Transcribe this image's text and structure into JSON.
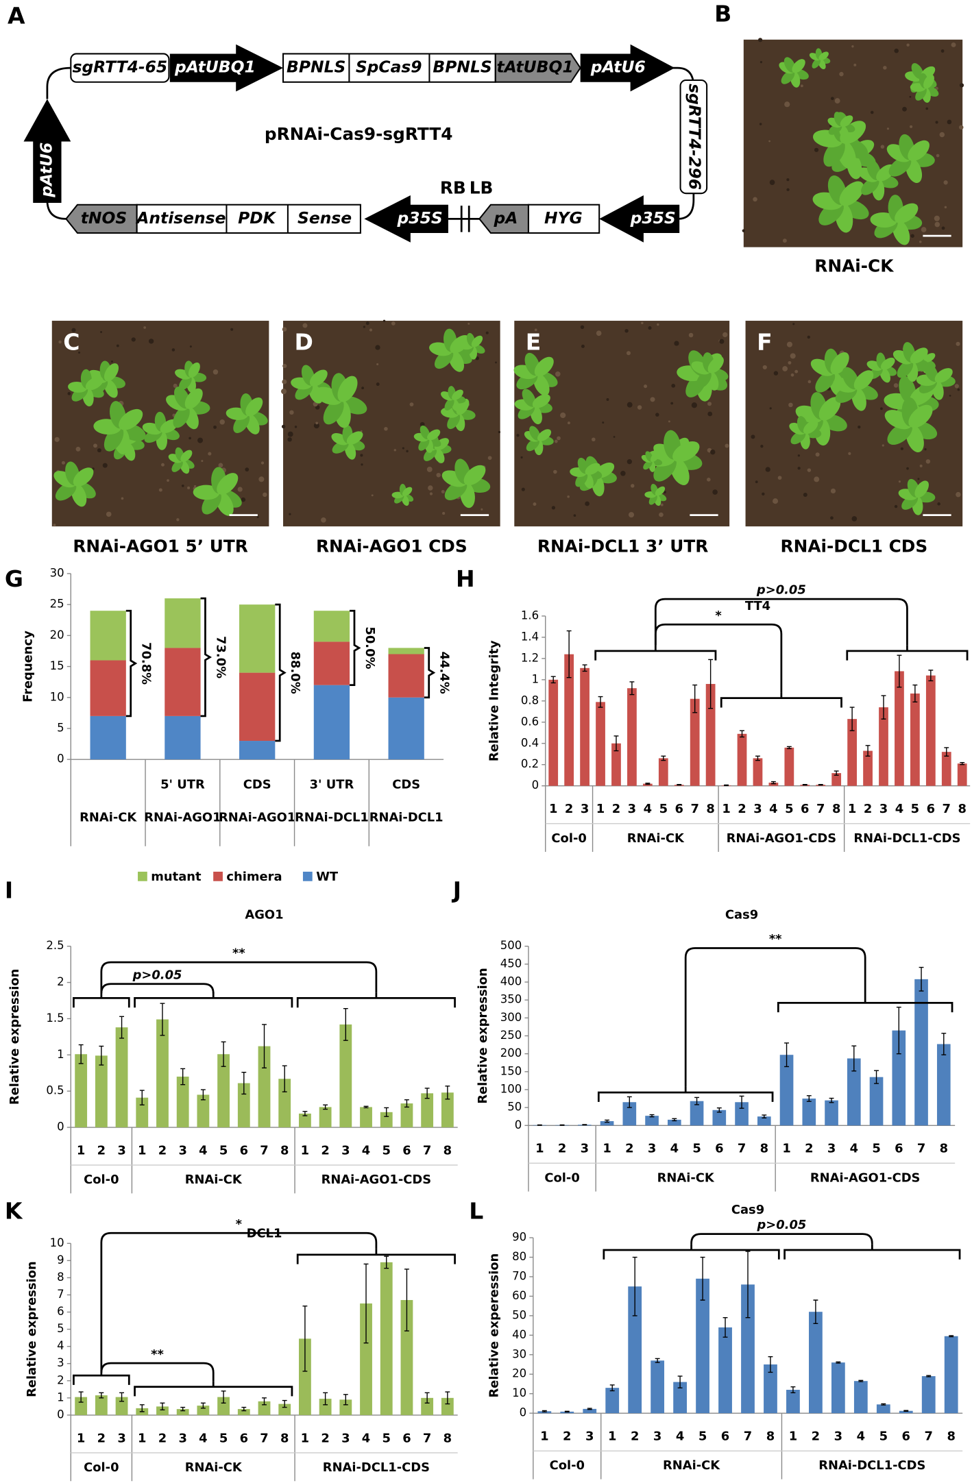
{
  "diagram": {
    "panel": "A",
    "title": "pRNAi-Cas9-sgRTT4",
    "elements": [
      "sgRTT4-65",
      "pAtUBQ1",
      "BPNLS",
      "SpCas9",
      "BPNLS",
      "tAtUBQ1",
      "pAtU6",
      "sgRTT4-296",
      "pAtU6",
      "tNOS",
      "Antisense",
      "PDK",
      "Sense",
      "p35S",
      "RB",
      "LB",
      "pA",
      "HYG",
      "p35S"
    ]
  },
  "photos": [
    {
      "panel": "B",
      "caption": "RNAi-CK"
    },
    {
      "panel": "C",
      "caption": "RNAi-AGO1 5’ UTR"
    },
    {
      "panel": "D",
      "caption": "RNAi-AGO1 CDS"
    },
    {
      "panel": "E",
      "caption": "RNAi-DCL1 3’ UTR"
    },
    {
      "panel": "F",
      "caption": "RNAi-DCL1 CDS"
    }
  ],
  "chart_data": [
    {
      "type": "stacked_bar",
      "panel": "G",
      "y_label": "Frequency",
      "categories": [
        "RNAi-CK",
        "RNAi-AGO1",
        "RNAi-AGO1",
        "RNAi-DCL1",
        "RNAi-DCL1"
      ],
      "subcategories": [
        null,
        "5' UTR",
        "CDS",
        "3' UTR",
        "CDS"
      ],
      "series": [
        {
          "name": "mutant",
          "color": "#9bc35a",
          "values": [
            8,
            8,
            11,
            5,
            1
          ]
        },
        {
          "name": "chimera",
          "color": "#c8504b",
          "values": [
            9,
            11,
            11,
            7,
            7
          ]
        },
        {
          "name": "WT",
          "color": "#4f86c6",
          "values": [
            7,
            7,
            3,
            12,
            10
          ]
        }
      ],
      "annotations": [
        "70.8%",
        "73.0%",
        "88.0%",
        "50.0%",
        "44.4%"
      ],
      "ylim": [
        0,
        30
      ],
      "yticks": [
        0,
        5,
        10,
        15,
        20,
        25,
        30
      ]
    },
    {
      "type": "bar",
      "panel": "H",
      "title": "TT4",
      "y_label": "Relative Integrity",
      "color": "#c8504b",
      "groups": [
        {
          "name": "Col-0",
          "categories": [
            "1",
            "2",
            "3"
          ],
          "values": [
            1.0,
            1.24,
            1.11
          ],
          "errors": [
            0.03,
            0.22,
            0.03
          ]
        },
        {
          "name": "RNAi-CK",
          "categories": [
            "1",
            "2",
            "3",
            "4",
            "5",
            "6",
            "7",
            "8"
          ],
          "values": [
            0.79,
            0.4,
            0.92,
            0.02,
            0.26,
            0.01,
            0.82,
            0.96
          ],
          "errors": [
            0.05,
            0.07,
            0.06,
            0.005,
            0.02,
            0.003,
            0.13,
            0.23
          ]
        },
        {
          "name": "RNAi-AGO1-CDS",
          "categories": [
            "1",
            "2",
            "3",
            "4",
            "5",
            "6",
            "7",
            "8"
          ],
          "values": [
            0.005,
            0.49,
            0.26,
            0.03,
            0.36,
            0.01,
            0.01,
            0.12
          ],
          "errors": [
            0.003,
            0.03,
            0.02,
            0.01,
            0.01,
            0.003,
            0.003,
            0.02
          ]
        },
        {
          "name": "RNAi-DCL1-CDS",
          "categories": [
            "1",
            "2",
            "3",
            "4",
            "5",
            "6",
            "7",
            "8"
          ],
          "values": [
            0.63,
            0.33,
            0.74,
            1.08,
            0.87,
            1.04,
            0.32,
            0.21
          ],
          "errors": [
            0.11,
            0.05,
            0.11,
            0.15,
            0.08,
            0.05,
            0.04,
            0.01
          ]
        }
      ],
      "annotations": [
        "*",
        "p>0.05"
      ],
      "ylim": [
        0,
        1.6
      ],
      "yticks": [
        0,
        0.2,
        0.4,
        0.6,
        0.8,
        1,
        1.2,
        1.4,
        1.6
      ]
    },
    {
      "type": "bar",
      "panel": "I",
      "title": "AGO1",
      "y_label": "Relative expression",
      "color": "#9bbb59",
      "groups": [
        {
          "name": "Col-0",
          "categories": [
            "1",
            "2",
            "3"
          ],
          "values": [
            1.01,
            0.99,
            1.38
          ],
          "errors": [
            0.13,
            0.13,
            0.15
          ]
        },
        {
          "name": "RNAi-CK",
          "categories": [
            "1",
            "2",
            "3",
            "4",
            "5",
            "6",
            "7",
            "8"
          ],
          "values": [
            0.41,
            1.49,
            0.7,
            0.45,
            1.01,
            0.61,
            1.12,
            0.67
          ],
          "errors": [
            0.1,
            0.22,
            0.11,
            0.07,
            0.17,
            0.15,
            0.3,
            0.18
          ]
        },
        {
          "name": "RNAi-AGO1-CDS",
          "categories": [
            "1",
            "2",
            "3",
            "4",
            "5",
            "6",
            "7",
            "8"
          ],
          "values": [
            0.19,
            0.28,
            1.42,
            0.28,
            0.21,
            0.33,
            0.47,
            0.48
          ],
          "errors": [
            0.03,
            0.03,
            0.22,
            0.01,
            0.06,
            0.05,
            0.07,
            0.09
          ]
        }
      ],
      "annotations": [
        "**",
        "p>0.05"
      ],
      "ylim": [
        0,
        2.5
      ],
      "yticks": [
        0,
        0.5,
        1,
        1.5,
        2,
        2.5
      ]
    },
    {
      "type": "bar",
      "panel": "J",
      "title": "Cas9",
      "y_label": "Relative expression",
      "color": "#4f81bd",
      "groups": [
        {
          "name": "Col-0",
          "categories": [
            "1",
            "2",
            "3"
          ],
          "values": [
            1,
            1,
            2
          ],
          "errors": [
            0.5,
            0.5,
            0.5
          ]
        },
        {
          "name": "RNAi-CK",
          "categories": [
            "1",
            "2",
            "3",
            "4",
            "5",
            "6",
            "7",
            "8"
          ],
          "values": [
            12,
            65,
            27,
            16,
            68,
            43,
            65,
            25
          ],
          "errors": [
            3,
            15,
            3,
            3,
            10,
            6,
            17,
            4
          ]
        },
        {
          "name": "RNAi-AGO1-CDS",
          "categories": [
            "1",
            "2",
            "3",
            "4",
            "5",
            "6",
            "7",
            "8"
          ],
          "values": [
            197,
            75,
            70,
            187,
            135,
            265,
            408,
            227
          ],
          "errors": [
            33,
            8,
            6,
            35,
            18,
            65,
            33,
            30
          ]
        }
      ],
      "annotations": [
        "**"
      ],
      "ylim": [
        0,
        500
      ],
      "yticks": [
        0,
        50,
        100,
        150,
        200,
        250,
        300,
        350,
        400,
        450,
        500
      ]
    },
    {
      "type": "bar",
      "panel": "K",
      "title": "DCL1",
      "y_label": "Relative expression",
      "color": "#9bbb59",
      "groups": [
        {
          "name": "Col-0",
          "categories": [
            "1",
            "2",
            "3"
          ],
          "values": [
            1.05,
            1.15,
            1.05
          ],
          "errors": [
            0.3,
            0.15,
            0.25
          ]
        },
        {
          "name": "RNAi-CK",
          "categories": [
            "1",
            "2",
            "3",
            "4",
            "5",
            "6",
            "7",
            "8"
          ],
          "values": [
            0.4,
            0.5,
            0.35,
            0.55,
            1.05,
            0.35,
            0.8,
            0.65
          ],
          "errors": [
            0.2,
            0.2,
            0.1,
            0.15,
            0.35,
            0.1,
            0.2,
            0.2
          ]
        },
        {
          "name": "RNAi-DCL1-CDS",
          "categories": [
            "1",
            "2",
            "3",
            "4",
            "5",
            "6",
            "7",
            "8"
          ],
          "values": [
            4.45,
            0.95,
            0.9,
            6.5,
            8.9,
            6.7,
            1.0,
            1.0
          ],
          "errors": [
            1.9,
            0.35,
            0.3,
            2.3,
            0.35,
            1.8,
            0.3,
            0.35
          ]
        }
      ],
      "annotations": [
        "*",
        "**"
      ],
      "ylim": [
        0,
        10
      ],
      "yticks": [
        0,
        1,
        2,
        3,
        4,
        5,
        6,
        7,
        8,
        9,
        10
      ]
    },
    {
      "type": "bar",
      "panel": "L",
      "title": "Cas9",
      "y_label": "Relative experession",
      "color": "#4f81bd",
      "groups": [
        {
          "name": "Col-0",
          "categories": [
            "1",
            "2",
            "3"
          ],
          "values": [
            1,
            0.8,
            2.2
          ],
          "errors": [
            0.3,
            0.2,
            0.3
          ]
        },
        {
          "name": "RNAi-CK",
          "categories": [
            "1",
            "2",
            "3",
            "4",
            "5",
            "6",
            "7",
            "8"
          ],
          "values": [
            13,
            65,
            27,
            16,
            69,
            44,
            66,
            25
          ],
          "errors": [
            1.5,
            15,
            1,
            3,
            11,
            5,
            17,
            4
          ]
        },
        {
          "name": "RNAi-DCL1-CDS",
          "categories": [
            "1",
            "2",
            "3",
            "4",
            "5",
            "6",
            "7",
            "8"
          ],
          "values": [
            12,
            52,
            26,
            16.5,
            4.5,
            1.2,
            19,
            39.5
          ],
          "errors": [
            1.5,
            6,
            0.3,
            0.3,
            0.3,
            0.2,
            0.3,
            0.3
          ]
        }
      ],
      "annotations": [
        "p>0.05"
      ],
      "ylim": [
        0,
        90
      ],
      "yticks": [
        0,
        10,
        20,
        30,
        40,
        50,
        60,
        70,
        80,
        90
      ]
    }
  ]
}
